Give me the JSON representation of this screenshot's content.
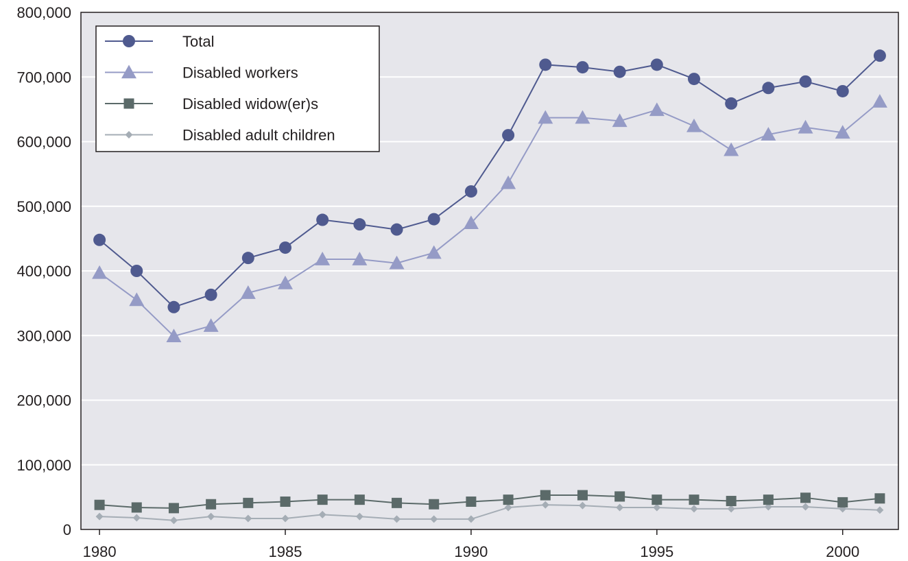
{
  "chart_data": {
    "type": "line",
    "title": "",
    "xlabel": "",
    "ylabel": "",
    "x": [
      1980,
      1981,
      1982,
      1983,
      1984,
      1985,
      1986,
      1987,
      1988,
      1989,
      1990,
      1991,
      1992,
      1993,
      1994,
      1995,
      1996,
      1997,
      1998,
      1999,
      2000,
      2001
    ],
    "xticks": [
      "1980",
      "1985",
      "1990",
      "1995",
      "2000"
    ],
    "xtick_values": [
      1980,
      1985,
      1990,
      1995,
      2000
    ],
    "yticks": [
      "0",
      "100,000",
      "200,000",
      "300,000",
      "400,000",
      "500,000",
      "600,000",
      "700,000",
      "800,000"
    ],
    "ytick_values": [
      0,
      100000,
      200000,
      300000,
      400000,
      500000,
      600000,
      700000,
      800000
    ],
    "xlim": [
      1979.5,
      2001.5
    ],
    "ylim": [
      0,
      800000
    ],
    "grid": "horizontal",
    "legend_position": "top-left",
    "background_color": "#e6e6eb",
    "grid_color": "#ffffff",
    "series": [
      {
        "name": "Total",
        "color": "#4f5a8f",
        "marker": "circle",
        "values": [
          448000,
          400000,
          344000,
          363000,
          420000,
          436000,
          479000,
          472000,
          464000,
          480000,
          523000,
          610000,
          719000,
          715000,
          708000,
          719000,
          697000,
          659000,
          683000,
          693000,
          678000,
          733000
        ]
      },
      {
        "name": "Disabled workers",
        "color": "#959bc6",
        "marker": "triangle",
        "values": [
          397000,
          355000,
          299000,
          315000,
          366000,
          381000,
          418000,
          418000,
          412000,
          428000,
          474000,
          536000,
          637000,
          637000,
          632000,
          649000,
          624000,
          587000,
          611000,
          622000,
          614000,
          662000
        ]
      },
      {
        "name": "Disabled widow(er)s",
        "color": "#5b6a69",
        "marker": "square",
        "values": [
          38000,
          34000,
          33000,
          39000,
          41000,
          43000,
          46000,
          46000,
          41000,
          39000,
          43000,
          46000,
          53000,
          53000,
          51000,
          46000,
          46000,
          44000,
          46000,
          49000,
          42000,
          48000
        ]
      },
      {
        "name": "Disabled adult children",
        "color": "#a5adb5",
        "marker": "diamond",
        "values": [
          20000,
          18000,
          14000,
          20000,
          17000,
          17000,
          23000,
          20000,
          16000,
          16000,
          16000,
          34000,
          38000,
          37000,
          34000,
          34000,
          32000,
          32000,
          35000,
          35000,
          32000,
          30000
        ]
      }
    ]
  }
}
